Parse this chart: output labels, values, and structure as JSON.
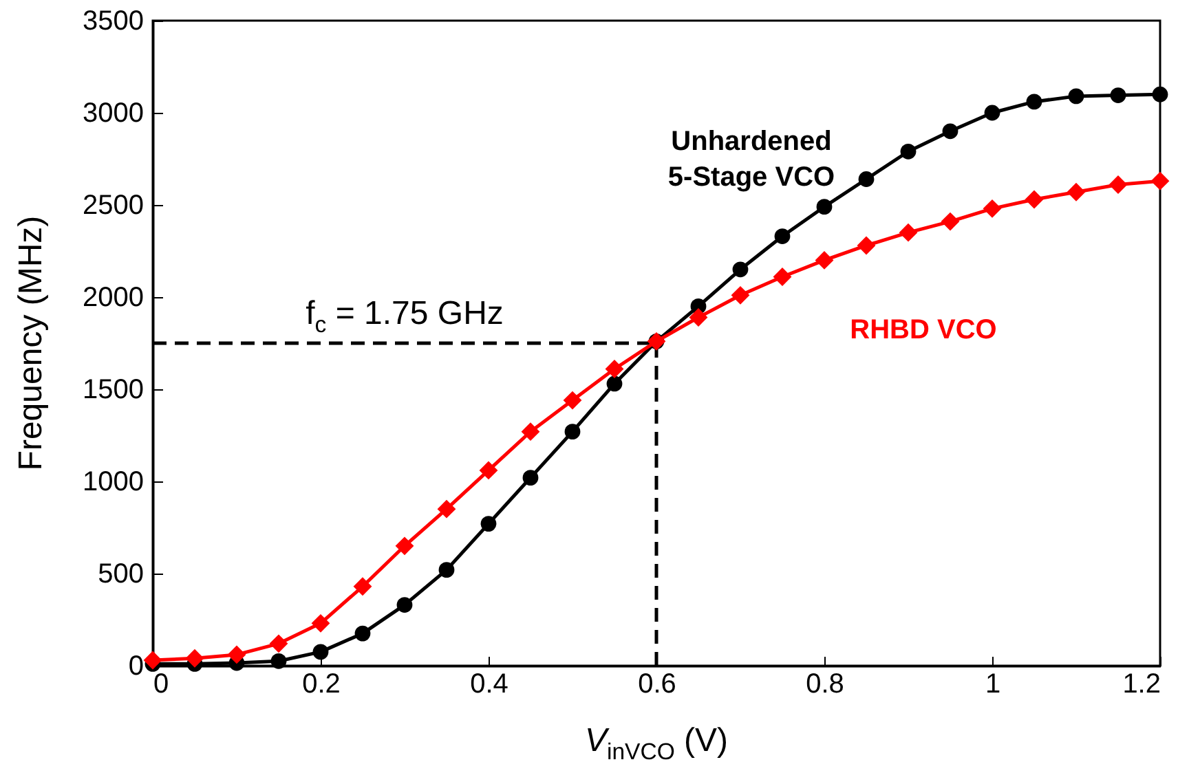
{
  "chart_data": {
    "type": "line",
    "xlabel": "V$_{inVCO}$ (V)",
    "ylabel": "Frequency (MHz)",
    "x": [
      0,
      0.05,
      0.1,
      0.15,
      0.2,
      0.25,
      0.3,
      0.35,
      0.4,
      0.45,
      0.5,
      0.55,
      0.6,
      0.65,
      0.7,
      0.75,
      0.8,
      0.85,
      0.9,
      0.95,
      1.0,
      1.05,
      1.1,
      1.15,
      1.2
    ],
    "series": [
      {
        "name": "Unhardened 5-Stage VCO",
        "color": "#000000",
        "marker": "circle",
        "values": [
          10,
          10,
          15,
          25,
          75,
          175,
          330,
          520,
          770,
          1020,
          1270,
          1530,
          1760,
          1950,
          2150,
          2330,
          2490,
          2640,
          2790,
          2900,
          3000,
          3060,
          3090,
          3095,
          3100
        ]
      },
      {
        "name": "RHBD VCO",
        "color": "#ff0000",
        "marker": "diamond",
        "values": [
          30,
          40,
          60,
          120,
          230,
          430,
          650,
          850,
          1060,
          1270,
          1440,
          1610,
          1760,
          1890,
          2010,
          2110,
          2200,
          2280,
          2350,
          2410,
          2480,
          2530,
          2570,
          2610,
          2630
        ]
      }
    ],
    "xlim": [
      0,
      1.2
    ],
    "xticks": [
      0,
      0.2,
      0.4,
      0.6,
      0.8,
      1,
      1.2
    ],
    "ylim": [
      0,
      3500
    ],
    "yticks": [
      0,
      500,
      1000,
      1500,
      2000,
      2500,
      3000,
      3500
    ],
    "ref_lines": [
      {
        "axis": "y",
        "value": 1750,
        "line_style": "dashed"
      },
      {
        "axis": "x",
        "value": 0.6,
        "line_style": "dashed"
      }
    ],
    "annotations": [
      {
        "text": "f$_{c}$ = 1.75 GHz",
        "x": 0.3,
        "y": 1750
      }
    ],
    "grid": false
  }
}
